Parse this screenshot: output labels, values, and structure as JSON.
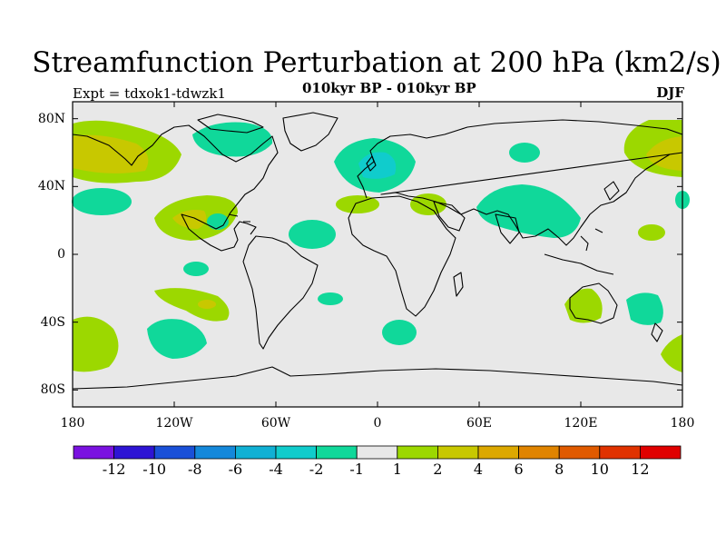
{
  "title": "Streamfunction Perturbation at 200 hPa (km2/s)",
  "subtitle": "010kyr BP - 010kyr BP",
  "experiment": "Expt = tdxok1-tdwzk1",
  "season": "DJF",
  "map": {
    "projection": "cylindrical equidistant",
    "lon_range": [
      -180,
      180
    ],
    "lat_range": [
      -90,
      90
    ],
    "y_ticks": [
      {
        "lat": 80,
        "label": "80N"
      },
      {
        "lat": 40,
        "label": "40N"
      },
      {
        "lat": 0,
        "label": "0"
      },
      {
        "lat": -40,
        "label": "40S"
      },
      {
        "lat": -80,
        "label": "80S"
      }
    ],
    "x_ticks": [
      {
        "lon": -180,
        "label": "180"
      },
      {
        "lon": -120,
        "label": "120W"
      },
      {
        "lon": -60,
        "label": "60W"
      },
      {
        "lon": 0,
        "label": "0"
      },
      {
        "lon": 60,
        "label": "60E"
      },
      {
        "lon": 120,
        "label": "120E"
      },
      {
        "lon": 180,
        "label": "180"
      }
    ],
    "background_color": "#e8e8e8"
  },
  "colorbar": {
    "colors": [
      "#7a12e0",
      "#2e14d4",
      "#1a50d8",
      "#1488da",
      "#10b0d4",
      "#10cccc",
      "#10d89a",
      "#e8e8e8",
      "#9cd800",
      "#c8c800",
      "#dca800",
      "#e08400",
      "#e05a00",
      "#e03200",
      "#e00000"
    ],
    "labels": [
      "-12",
      "-10",
      "-8",
      "-6",
      "-4",
      "-2",
      "-1",
      "1",
      "2",
      "4",
      "6",
      "8",
      "10",
      "12"
    ]
  },
  "contour_colors": {
    "neg1": "#10d89a",
    "neg2": "#10cccc",
    "pos1": "#9cd800",
    "pos2": "#c8c800",
    "pos3": "#dca800"
  }
}
